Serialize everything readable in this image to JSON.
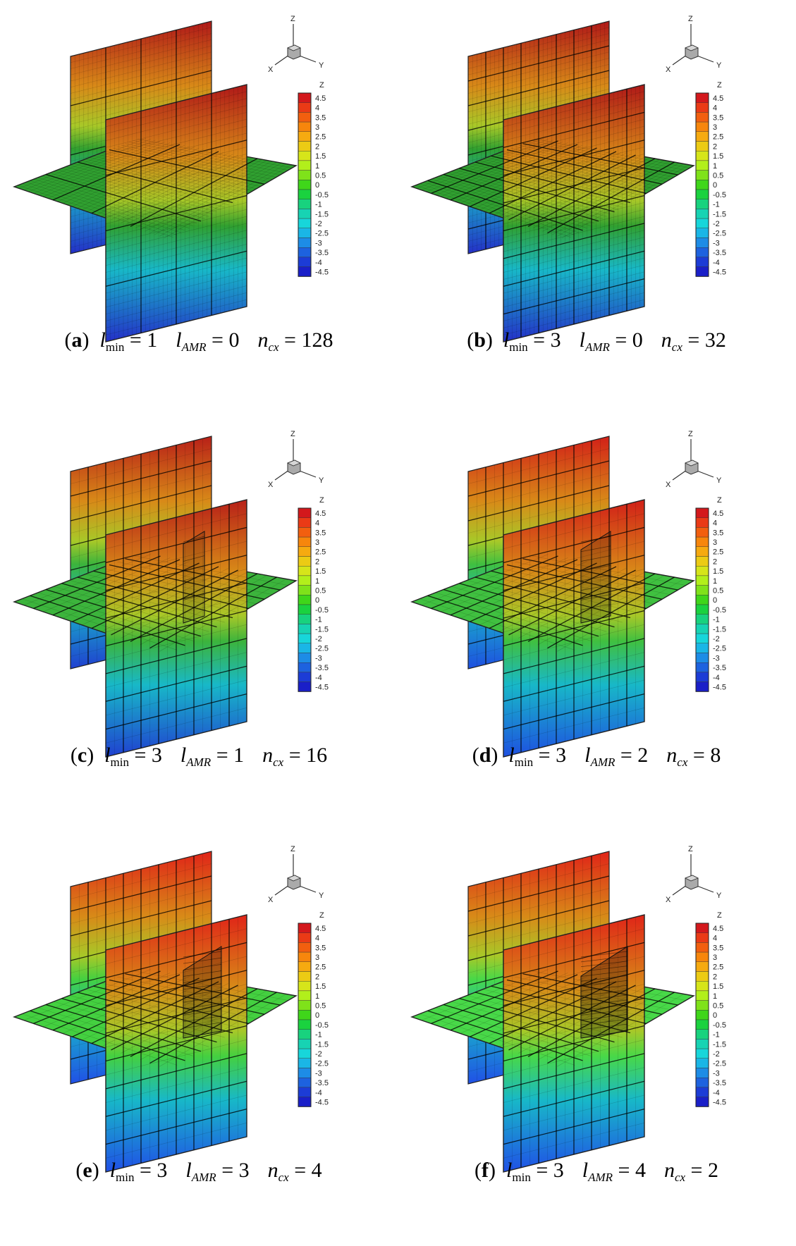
{
  "figure": {
    "colorbar": {
      "title": "Z",
      "ticks": [
        "4.5",
        "4",
        "3.5",
        "3",
        "2.5",
        "2",
        "1.5",
        "1",
        "0.5",
        "0",
        "-0.5",
        "-1",
        "-1.5",
        "-2",
        "-2.5",
        "-3",
        "-3.5",
        "-4",
        "-4.5"
      ],
      "colors": [
        "#d3181c",
        "#ea3a16",
        "#f25f0f",
        "#f7860c",
        "#f6aa10",
        "#eccb14",
        "#d6e51a",
        "#b2ef1b",
        "#7fe21a",
        "#3fd61a",
        "#1ad23f",
        "#18d27e",
        "#17d3b3",
        "#17d6da",
        "#1ab6e6",
        "#1d8ce6",
        "#1d62df",
        "#1c3cd6",
        "#1a1fc8"
      ]
    },
    "axes_triad": {
      "z": "Z",
      "x": "X",
      "y": "Y"
    },
    "panels": [
      {
        "tag": "a",
        "l_min": "1",
        "l_amr": "0",
        "n_cx": "128",
        "top_color": "#b01818",
        "bottom_color": "#2430c8",
        "mid_color": "#30a030",
        "coarse": 4,
        "fine": 64,
        "refined": 0
      },
      {
        "tag": "b",
        "l_min": "3",
        "l_amr": "0",
        "n_cx": "32",
        "top_color": "#b01818",
        "bottom_color": "#2430c8",
        "mid_color": "#30a030",
        "coarse": 8,
        "fine": 32,
        "refined": 0
      },
      {
        "tag": "c",
        "l_min": "3",
        "l_amr": "1",
        "n_cx": "16",
        "top_color": "#b82018",
        "bottom_color": "#2040d0",
        "mid_color": "#3cb43c",
        "coarse": 8,
        "fine": 16,
        "refined": 1
      },
      {
        "tag": "d",
        "l_min": "3",
        "l_amr": "2",
        "n_cx": "8",
        "top_color": "#d22018",
        "bottom_color": "#1e50e0",
        "mid_color": "#40c040",
        "coarse": 8,
        "fine": 16,
        "refined": 2
      },
      {
        "tag": "e",
        "l_min": "3",
        "l_amr": "3",
        "n_cx": "4",
        "top_color": "#e02418",
        "bottom_color": "#2050e6",
        "mid_color": "#44d040",
        "coarse": 8,
        "fine": 16,
        "refined": 3
      },
      {
        "tag": "f",
        "l_min": "3",
        "l_amr": "4",
        "n_cx": "2",
        "top_color": "#e02418",
        "bottom_color": "#2050e6",
        "mid_color": "#48d848",
        "coarse": 8,
        "fine": 16,
        "refined": 4
      }
    ],
    "symbols": {
      "l": "l",
      "min": "min",
      "amr": "AMR",
      "n": "n",
      "cx": "cx",
      "eq": "="
    }
  }
}
